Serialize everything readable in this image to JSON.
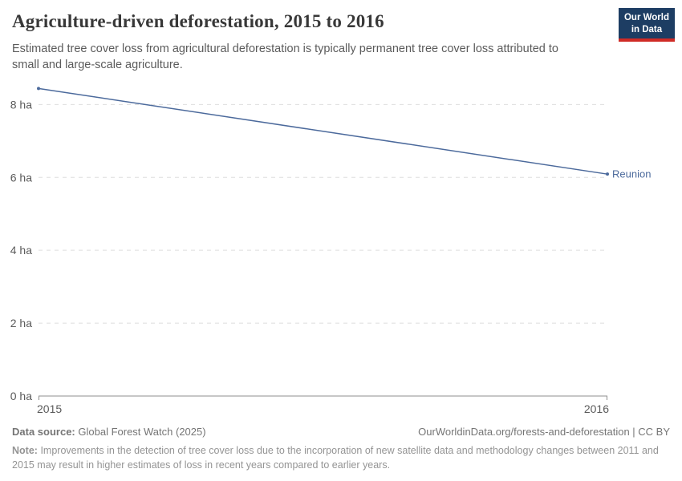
{
  "header": {
    "title": "Agriculture-driven deforestation, 2015 to 2016",
    "subtitle": "Estimated tree cover loss from agricultural deforestation is typically permanent tree cover loss attributed to small and large-scale agriculture."
  },
  "logo": {
    "line1": "Our World",
    "line2": "in Data",
    "background_color": "#1d3d63",
    "accent_color": "#cf2b26"
  },
  "chart_data": {
    "type": "line",
    "x": [
      2015,
      2016
    ],
    "x_tick_labels": [
      "2015",
      "2016"
    ],
    "series": [
      {
        "name": "Reunion",
        "values": [
          8.44,
          6.09
        ],
        "color": "#4c6a9c"
      }
    ],
    "title": "Agriculture-driven deforestation, 2015 to 2016",
    "xlabel": "",
    "ylabel": "",
    "y_ticks": [
      0,
      2,
      4,
      6,
      8
    ],
    "y_tick_suffix": " ha",
    "ylim": [
      0,
      8.8
    ],
    "grid": "horizontal-dashed",
    "legend_position": "end-of-line-label",
    "gridline_color": "#dedede",
    "axis_line_color": "#8f8f8f"
  },
  "footer": {
    "data_source_label": "Data source:",
    "data_source_value": "Global Forest Watch (2025)",
    "link": "OurWorldinData.org/forests-and-deforestation | CC BY",
    "note_label": "Note:",
    "note_value": "Improvements in the detection of tree cover loss due to the incorporation of new satellite data and methodology changes between 2011 and 2015 may result in higher estimates of loss in recent years compared to earlier years."
  }
}
